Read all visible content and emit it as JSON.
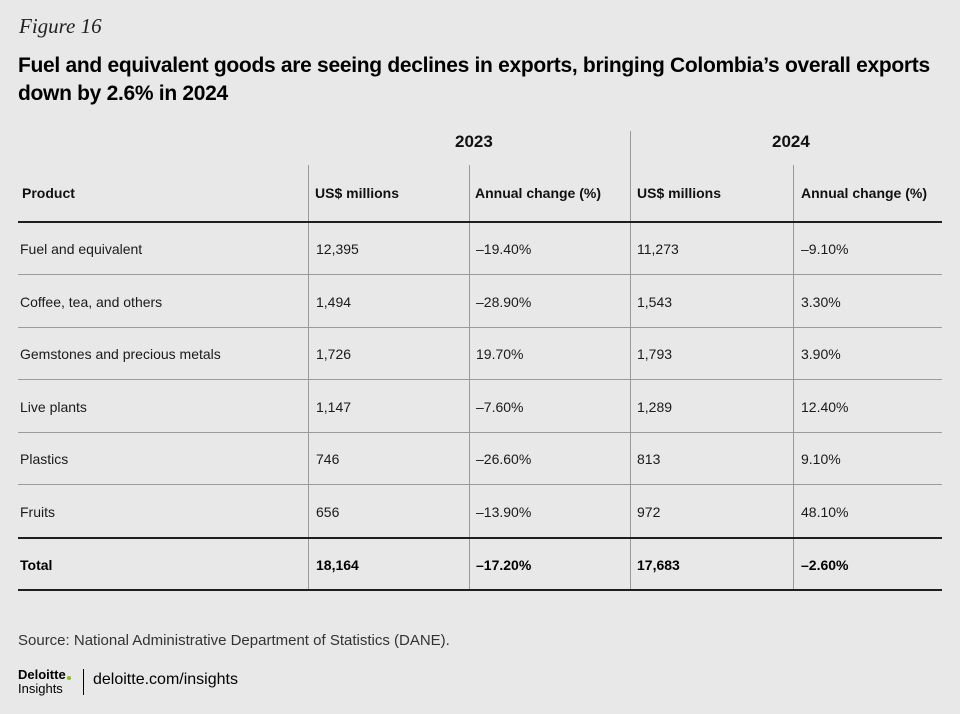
{
  "figure_label": "Figure 16",
  "title": "Fuel and equivalent goods are seeing declines in exports, bringing Colombia’s overall exports down by 2.6% in 2024",
  "source": "Source: National Administrative Department of Statistics (DANE).",
  "footer": {
    "brand_top": "Deloitte",
    "brand_bottom": "Insights",
    "link": "deloitte.com/insights",
    "accent_color": "#86bc25"
  },
  "chart_data": {
    "type": "table",
    "title": "Fuel and equivalent goods are seeing declines in exports, bringing Colombia’s overall exports down by 2.6% in 2024",
    "year_groups": [
      "2023",
      "2024"
    ],
    "headers": [
      "Product",
      "US$ millions",
      "Annual change (%)",
      "US$ millions",
      "Annual change (%)"
    ],
    "rows": [
      [
        "Fuel and equivalent",
        "12,395",
        "–19.40%",
        "11,273",
        "–9.10%"
      ],
      [
        "Coffee, tea, and others",
        "1,494",
        "–28.90%",
        "1,543",
        "3.30%"
      ],
      [
        "Gemstones and precious metals",
        "1,726",
        "19.70%",
        "1,793",
        "3.90%"
      ],
      [
        "Live plants",
        "1,147",
        "–7.60%",
        "1,289",
        "12.40%"
      ],
      [
        "Plastics",
        "746",
        "–26.60%",
        "813",
        "9.10%"
      ],
      [
        "Fruits",
        "656",
        "–13.90%",
        "972",
        "48.10%"
      ]
    ],
    "total": [
      "Total",
      "18,164",
      "–17.20%",
      "17,683",
      "–2.60%"
    ]
  }
}
